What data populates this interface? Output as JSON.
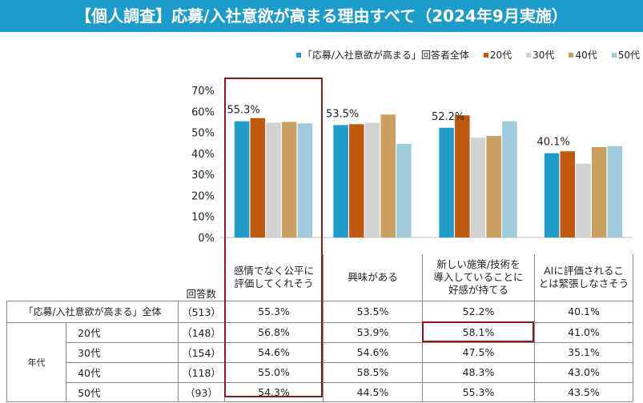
{
  "title": "【個人調査】応募/入社意欲が高まる理由すべて（2024年9月実施）",
  "chart_data": {
    "type": "bar",
    "categories": [
      "感情でなく公平に評価してくれそう",
      "興味がある",
      "新しい施策/技術を導入していることに好感が持てる",
      "AIに評価されることは緊張しなさそう"
    ],
    "series": [
      {
        "name": "「応募/入社意欲が高まる」回答者全体",
        "color": "#1f9dc8",
        "values": [
          55.3,
          53.5,
          52.2,
          40.1
        ]
      },
      {
        "name": "20代",
        "color": "#c0580d",
        "values": [
          56.8,
          53.9,
          58.1,
          41.0
        ]
      },
      {
        "name": "30代",
        "color": "#d2d2d2",
        "values": [
          54.6,
          54.6,
          47.5,
          35.1
        ]
      },
      {
        "name": "40代",
        "color": "#c9a060",
        "values": [
          55.0,
          58.5,
          48.3,
          43.0
        ]
      },
      {
        "name": "50代",
        "color": "#9fcbdb",
        "values": [
          54.3,
          44.5,
          55.3,
          43.5
        ]
      }
    ],
    "data_labels": [
      "55.3%",
      "53.5%",
      "52.2%",
      "40.1%"
    ],
    "ylim": [
      0,
      70
    ],
    "yticks": [
      "0%",
      "10%",
      "20%",
      "30%",
      "40%",
      "50%",
      "60%",
      "70%"
    ],
    "legend": "top-right",
    "grid": false
  },
  "table": {
    "count_header": "回答数",
    "group_label": "年代",
    "headers": [
      "感情でなく公平に\n評価してくれそう",
      "興味がある",
      "新しい施策/技術を\n導入していることに\n好感が持てる",
      "AIに評価されるこ\nとは緊張しなさそう"
    ],
    "rows": [
      {
        "label": "「応募/入社意欲が高まる」全体",
        "count": "（513）",
        "values": [
          "55.3%",
          "53.5%",
          "52.2%",
          "40.1%"
        ]
      },
      {
        "label": "20代",
        "count": "（148）",
        "values": [
          "56.8%",
          "53.9%",
          "58.1%",
          "41.0%"
        ]
      },
      {
        "label": "30代",
        "count": "（154）",
        "values": [
          "54.6%",
          "54.6%",
          "47.5%",
          "35.1%"
        ]
      },
      {
        "label": "40代",
        "count": "（118）",
        "values": [
          "55.0%",
          "58.5%",
          "48.3%",
          "43.0%"
        ]
      },
      {
        "label": "50代",
        "count": "（93）",
        "values": [
          "54.3%",
          "44.5%",
          "55.3%",
          "43.5%"
        ]
      }
    ]
  }
}
